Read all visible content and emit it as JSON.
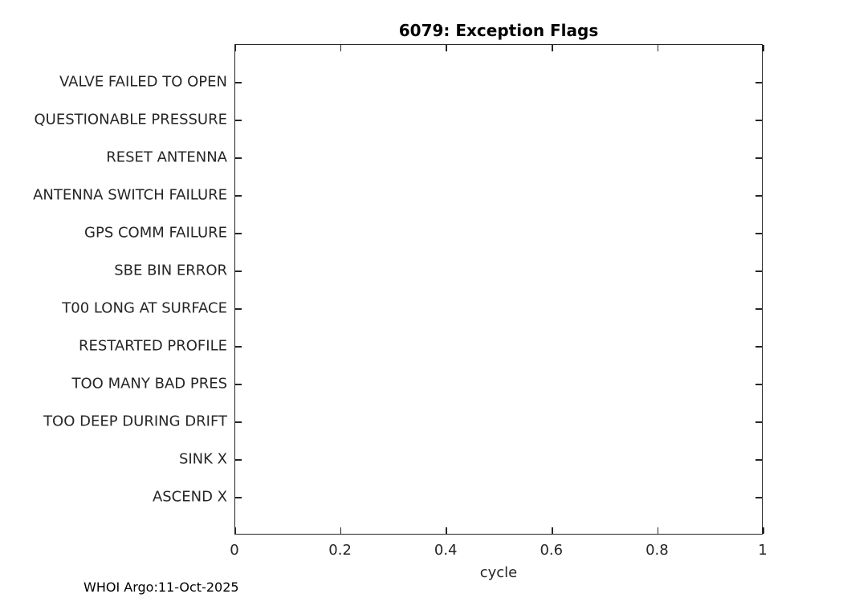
{
  "figure": {
    "title": "6079: Exception Flags",
    "footer": "WHOI Argo:11-Oct-2025"
  },
  "chart_data": {
    "type": "scatter",
    "title": "6079: Exception Flags",
    "xlabel": "cycle",
    "ylabel": "",
    "xlim": [
      0,
      1
    ],
    "x_tick_values": [
      0,
      0.2,
      0.4,
      0.6,
      0.8,
      1
    ],
    "x_tick_labels": [
      "0",
      "0.2",
      "0.4",
      "0.6",
      "0.8",
      "1"
    ],
    "y_categories": [
      "VALVE FAILED TO OPEN",
      "QUESTIONABLE PRESSURE",
      "RESET ANTENNA",
      "ANTENNA SWITCH FAILURE",
      "GPS COMM FAILURE",
      "SBE BIN ERROR",
      "T00 LONG AT SURFACE",
      "RESTARTED PROFILE",
      "TOO MANY BAD PRES",
      "TOO DEEP DURING DRIFT",
      "SINK X",
      "ASCEND X"
    ],
    "points": [],
    "grid": false,
    "box": true,
    "ticks_direction": "in",
    "legend": false,
    "axis_color": "#262626",
    "background": "#ffffff"
  }
}
